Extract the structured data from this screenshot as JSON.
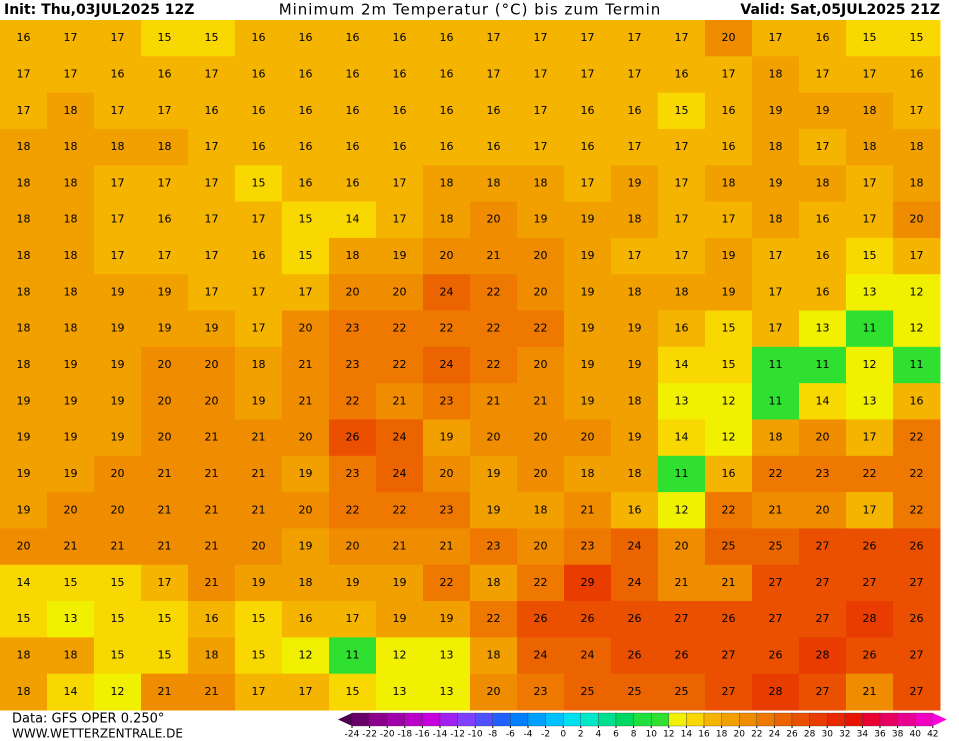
{
  "header": {
    "init": "Init: Thu,03JUL2025 12Z",
    "title": "Minimum 2m Temperatur (°C) bis zum Termin",
    "valid": "Valid: Sat,05JUL2025 21Z"
  },
  "footer": {
    "source": "Data: GFS OPER 0.250°",
    "website": "WWW.WETTERZENTRALE.DE"
  },
  "legend": {
    "ticks": [
      -24,
      -22,
      -20,
      -18,
      -16,
      -14,
      -12,
      -10,
      -8,
      -6,
      -4,
      -2,
      0,
      2,
      4,
      6,
      8,
      10,
      12,
      14,
      16,
      18,
      20,
      22,
      24,
      26,
      28,
      30,
      32,
      34,
      36,
      38,
      40,
      42
    ],
    "colors": [
      "#4b0050",
      "#6a006a",
      "#8a008a",
      "#a000a8",
      "#b800c8",
      "#c800e0",
      "#a020f0",
      "#8040ff",
      "#5050ff",
      "#2060ff",
      "#0080ff",
      "#00a0ff",
      "#00c0ff",
      "#00e0f0",
      "#00e8c8",
      "#00e090",
      "#00d860",
      "#20e040",
      "#30e030",
      "#f0f000",
      "#f8d800",
      "#f5b400",
      "#f2a000",
      "#f08c00",
      "#ee7800",
      "#ec6400",
      "#ea5000",
      "#e83c00",
      "#e82800",
      "#e81400",
      "#e80030",
      "#e80060",
      "#e80090",
      "#f000c0",
      "#ff00e0"
    ]
  },
  "map": {
    "values": [
      [
        16,
        17,
        17,
        15,
        15,
        16,
        16,
        16,
        16,
        16,
        17,
        17,
        17,
        17,
        17,
        20,
        17,
        16,
        15,
        15
      ],
      [
        17,
        17,
        16,
        16,
        17,
        16,
        16,
        16,
        16,
        16,
        17,
        17,
        17,
        17,
        16,
        17,
        18,
        17,
        17,
        16
      ],
      [
        17,
        18,
        17,
        17,
        16,
        16,
        16,
        16,
        16,
        16,
        16,
        17,
        16,
        16,
        15,
        16,
        19,
        19,
        18,
        17
      ],
      [
        18,
        18,
        18,
        18,
        17,
        16,
        16,
        16,
        16,
        16,
        16,
        17,
        16,
        17,
        17,
        16,
        18,
        17,
        18,
        18
      ],
      [
        18,
        18,
        17,
        17,
        17,
        15,
        16,
        16,
        17,
        18,
        18,
        18,
        17,
        19,
        17,
        18,
        19,
        18,
        17,
        18
      ],
      [
        18,
        18,
        17,
        16,
        17,
        17,
        15,
        14,
        17,
        18,
        20,
        19,
        19,
        18,
        17,
        17,
        18,
        16,
        17,
        20
      ],
      [
        18,
        18,
        17,
        17,
        17,
        16,
        15,
        18,
        19,
        20,
        21,
        20,
        19,
        17,
        17,
        19,
        17,
        16,
        15,
        17
      ],
      [
        18,
        18,
        19,
        19,
        17,
        17,
        17,
        20,
        20,
        24,
        22,
        20,
        19,
        18,
        18,
        19,
        17,
        16,
        13,
        12
      ],
      [
        18,
        18,
        19,
        19,
        19,
        17,
        20,
        23,
        22,
        22,
        22,
        22,
        19,
        19,
        16,
        15,
        17,
        13,
        11,
        12
      ],
      [
        18,
        19,
        19,
        20,
        20,
        18,
        21,
        23,
        22,
        24,
        22,
        20,
        19,
        19,
        14,
        15,
        11,
        11,
        12,
        11
      ],
      [
        19,
        19,
        19,
        20,
        20,
        19,
        21,
        22,
        21,
        23,
        21,
        21,
        19,
        18,
        13,
        12,
        11,
        14,
        13,
        16
      ],
      [
        19,
        19,
        19,
        20,
        21,
        21,
        20,
        26,
        24,
        19,
        20,
        20,
        20,
        19,
        14,
        12,
        18,
        20,
        17,
        22
      ],
      [
        19,
        19,
        20,
        21,
        21,
        21,
        19,
        23,
        24,
        20,
        19,
        20,
        18,
        18,
        11,
        16,
        22,
        23,
        22,
        22
      ],
      [
        19,
        20,
        20,
        21,
        21,
        21,
        20,
        22,
        22,
        23,
        19,
        18,
        21,
        16,
        12,
        22,
        21,
        20,
        17,
        22
      ],
      [
        20,
        21,
        21,
        21,
        21,
        20,
        19,
        20,
        21,
        21,
        23,
        20,
        23,
        24,
        20,
        25,
        25,
        27,
        26,
        26
      ],
      [
        14,
        15,
        15,
        17,
        21,
        19,
        18,
        19,
        19,
        22,
        18,
        22,
        29,
        24,
        21,
        21,
        27,
        27,
        27,
        27
      ],
      [
        15,
        13,
        15,
        15,
        16,
        15,
        16,
        17,
        19,
        19,
        22,
        26,
        26,
        26,
        27,
        26,
        27,
        27,
        28,
        26
      ],
      [
        18,
        18,
        15,
        15,
        18,
        15,
        12,
        11,
        12,
        13,
        18,
        24,
        24,
        26,
        26,
        27,
        26,
        28,
        26,
        27
      ],
      [
        18,
        14,
        12,
        21,
        21,
        17,
        17,
        15,
        13,
        13,
        20,
        23,
        25,
        25,
        25,
        27,
        28,
        27,
        21,
        27
      ]
    ]
  }
}
